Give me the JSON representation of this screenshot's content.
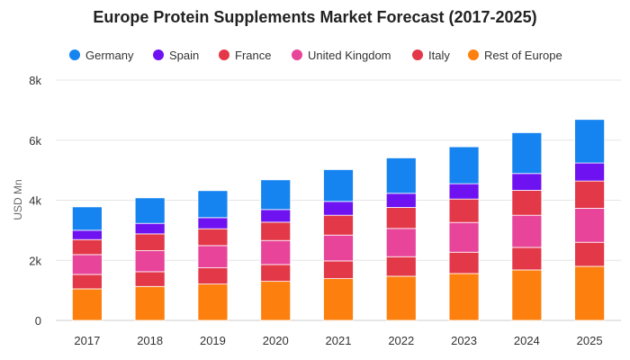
{
  "chart_data": {
    "type": "bar",
    "stacked": true,
    "title": "Europe Protein Supplements Market Forecast (2017-2025)",
    "ylabel": "USD Mn",
    "xlabel": "",
    "ylim": [
      0,
      8000
    ],
    "yticks": [
      0,
      2000,
      4000,
      6000,
      8000
    ],
    "ytick_labels": [
      "0",
      "2k",
      "4k",
      "6k",
      "8k"
    ],
    "grid": true,
    "legend_position": "top",
    "categories": [
      "2017",
      "2018",
      "2019",
      "2020",
      "2021",
      "2022",
      "2023",
      "2024",
      "2025"
    ],
    "series": [
      {
        "name": "Rest of Europe",
        "color": "#fd7f0e",
        "values": [
          1050,
          1130,
          1210,
          1300,
          1390,
          1470,
          1560,
          1680,
          1800
        ]
      },
      {
        "name": "Italy",
        "color": "#e33848",
        "values": [
          480,
          490,
          540,
          560,
          590,
          650,
          710,
          750,
          800
        ]
      },
      {
        "name": "United Kingdom",
        "color": "#e7449a",
        "values": [
          660,
          700,
          740,
          800,
          860,
          940,
          990,
          1070,
          1130
        ]
      },
      {
        "name": "France",
        "color": "#e33848",
        "values": [
          500,
          560,
          560,
          610,
          660,
          700,
          780,
          830,
          910
        ]
      },
      {
        "name": "Spain",
        "color": "#6f12f1",
        "values": [
          310,
          350,
          370,
          420,
          460,
          470,
          510,
          560,
          600
        ]
      },
      {
        "name": "Germany",
        "color": "#1584f1",
        "values": [
          780,
          850,
          900,
          990,
          1060,
          1180,
          1230,
          1360,
          1450
        ]
      }
    ],
    "legend_order": [
      "Germany",
      "Spain",
      "France",
      "United Kingdom",
      "Italy",
      "Rest of Europe"
    ]
  }
}
